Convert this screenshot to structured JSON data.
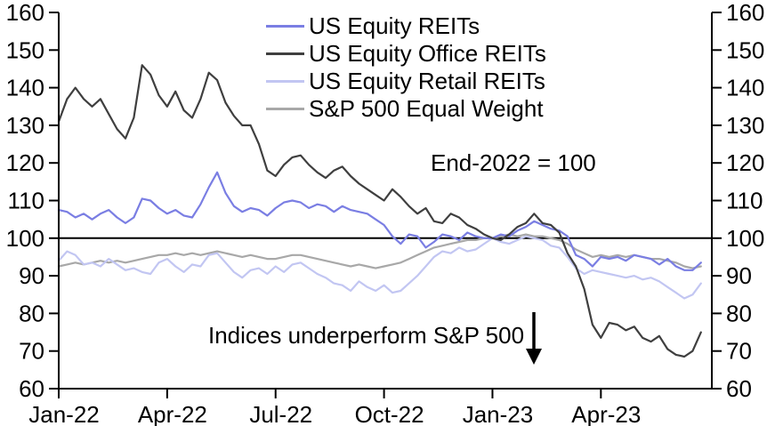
{
  "chart_data": {
    "type": "line",
    "title": "",
    "xlabel": "",
    "ylabel": "",
    "ylim": [
      60,
      160
    ],
    "xlim_weeks": [
      0,
      78.3
    ],
    "baseline_value": 100,
    "grid": false,
    "legend_position": "top-center-inside",
    "y_ticks": [
      60,
      70,
      80,
      90,
      100,
      110,
      120,
      130,
      140,
      150,
      160
    ],
    "x_ticks": [
      {
        "label": "Jan-22",
        "week": 0
      },
      {
        "label": "Apr-22",
        "week": 13
      },
      {
        "label": "Jul-22",
        "week": 26
      },
      {
        "label": "Oct-22",
        "week": 39
      },
      {
        "label": "Jan-23",
        "week": 52
      },
      {
        "label": "Apr-23",
        "week": 65
      }
    ],
    "axis_color": "#000000",
    "series": [
      {
        "name": "US Equity REITs",
        "color": "#7a7ee3",
        "values": [
          107.5,
          107,
          105.5,
          106.5,
          105,
          106.5,
          107.5,
          105.5,
          104,
          105.5,
          110.5,
          110,
          108,
          106.5,
          107.5,
          106,
          105.5,
          109,
          113.5,
          117.5,
          112,
          108.5,
          107,
          108,
          107.5,
          106,
          108,
          109.5,
          110,
          109.5,
          108,
          109,
          108.5,
          107,
          108.5,
          107.5,
          107,
          106.5,
          105,
          103.5,
          100.5,
          98.5,
          101,
          100.5,
          97.5,
          99,
          101,
          100.5,
          99.5,
          101.5,
          100.5,
          100,
          100,
          101,
          100.5,
          102,
          103,
          104.5,
          103.5,
          102.5,
          102,
          100.5,
          95.5,
          94.5,
          92.5,
          95,
          94.5,
          95,
          94,
          95.5,
          95,
          94.5,
          93,
          94.5,
          92.5,
          91.5,
          91.5,
          93.5
        ]
      },
      {
        "name": "US Equity Office REITs",
        "color": "#3f3f3f",
        "values": [
          131,
          137,
          140,
          137,
          135,
          137,
          133,
          129,
          126.5,
          132,
          146,
          143.5,
          138,
          135,
          139,
          134,
          132,
          137,
          144,
          142,
          136,
          132.5,
          130,
          130,
          125,
          118,
          116.5,
          119.5,
          121.5,
          122,
          119.5,
          117.5,
          116,
          118,
          119,
          116.5,
          114.5,
          113,
          111.5,
          110,
          113,
          111,
          108.5,
          106.5,
          108,
          104.5,
          104,
          106.5,
          105.5,
          103.5,
          102.5,
          101,
          100,
          99.5,
          101,
          103,
          104,
          106.5,
          104,
          103.5,
          101.5,
          96,
          92.5,
          86.5,
          77,
          73.5,
          77.5,
          77,
          75.5,
          76.5,
          73.5,
          72.5,
          74,
          70.5,
          69,
          68.5,
          70,
          75
        ]
      },
      {
        "name": "US Equity Retail REITs",
        "color": "#c2c6f2",
        "values": [
          94,
          96.5,
          95.5,
          93,
          93.5,
          92.5,
          94.5,
          93,
          91.5,
          92,
          91,
          90.5,
          93.5,
          94.5,
          92.5,
          91,
          93,
          92.5,
          95.5,
          96,
          93.5,
          91,
          89.5,
          91.5,
          92,
          90.5,
          92.5,
          91,
          93,
          93.5,
          92,
          90.5,
          89.5,
          88,
          87.5,
          86,
          88.5,
          87,
          86,
          87.5,
          85.5,
          86,
          88,
          90,
          92.5,
          95,
          96.5,
          96,
          97.5,
          96.5,
          97,
          98.5,
          100,
          99,
          98.5,
          99.5,
          100.5,
          100,
          99.5,
          98,
          97.5,
          95,
          92,
          90.5,
          91.5,
          91,
          90.5,
          90,
          89.5,
          90,
          89,
          89.5,
          88.5,
          87,
          85.5,
          84,
          85,
          88
        ]
      },
      {
        "name": "S&P 500 Equal Weight",
        "color": "#a8a8a8",
        "values": [
          92.5,
          93,
          93.5,
          93,
          93.5,
          94,
          93.5,
          94,
          93.5,
          94,
          94.5,
          95,
          95.5,
          95.5,
          96,
          95.5,
          96,
          95.5,
          96,
          96.5,
          96,
          95.5,
          95,
          95.5,
          95,
          94.5,
          94.5,
          95,
          95.5,
          95.5,
          95,
          94.5,
          94,
          93.5,
          93,
          92.5,
          93,
          92.5,
          92,
          92.5,
          93,
          93.5,
          94.5,
          95.5,
          96.5,
          97.5,
          98,
          98.5,
          99,
          99.5,
          99.5,
          100,
          100,
          100.5,
          101,
          100.5,
          101,
          100.5,
          100.5,
          100,
          99.5,
          98.5,
          97,
          96,
          95,
          95.5,
          95,
          95.5,
          95,
          95.5,
          95,
          94.5,
          94.5,
          94,
          93.5,
          92.5,
          92,
          92.5
        ]
      }
    ],
    "annotations": [
      {
        "text": "End-2022 = 100"
      },
      {
        "text": "Indices underperform S&P 500",
        "icon": "down-arrow-icon"
      }
    ]
  }
}
